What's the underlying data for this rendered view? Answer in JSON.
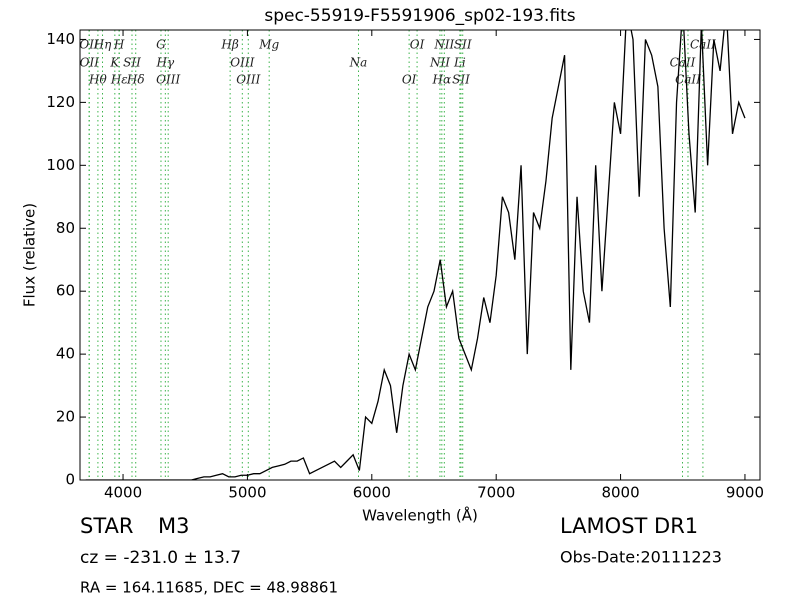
{
  "chart_data": {
    "type": "line",
    "title": "spec-55919-F5591906_sp02-193.fits",
    "x_label": "Wavelength (Å)",
    "y_label": "Flux (relative)",
    "xlim": [
      3654,
      9121
    ],
    "ylim": [
      0,
      143
    ],
    "xticks": [
      4000,
      5000,
      6000,
      7000,
      8000,
      9000
    ],
    "yticks": [
      0,
      20,
      40,
      60,
      80,
      100,
      120,
      140
    ],
    "color": "#000000",
    "line_color": "#3cb44b",
    "x": [
      3700,
      3750,
      3800,
      3850,
      3900,
      3950,
      4000,
      4050,
      4100,
      4150,
      4200,
      4250,
      4300,
      4350,
      4400,
      4450,
      4500,
      4550,
      4600,
      4650,
      4700,
      4750,
      4800,
      4850,
      4900,
      4950,
      5000,
      5050,
      5100,
      5150,
      5200,
      5250,
      5300,
      5350,
      5400,
      5450,
      5500,
      5550,
      5600,
      5650,
      5700,
      5750,
      5800,
      5850,
      5900,
      5950,
      6000,
      6050,
      6100,
      6150,
      6200,
      6250,
      6300,
      6350,
      6400,
      6450,
      6500,
      6550,
      6600,
      6650,
      6700,
      6750,
      6800,
      6850,
      6900,
      6950,
      7000,
      7050,
      7100,
      7150,
      7200,
      7250,
      7300,
      7350,
      7400,
      7450,
      7500,
      7550,
      7600,
      7650,
      7700,
      7750,
      7800,
      7850,
      7900,
      7950,
      8000,
      8050,
      8100,
      8150,
      8200,
      8250,
      8300,
      8350,
      8400,
      8450,
      8500,
      8550,
      8600,
      8650,
      8700,
      8750,
      8800,
      8850,
      8900,
      8950,
      9000
    ],
    "values": [
      0,
      0,
      0,
      0,
      0,
      0,
      0,
      0,
      0,
      0,
      0,
      0,
      0,
      0,
      0,
      0,
      0,
      0,
      0.5,
      1,
      1,
      1.5,
      2,
      1,
      1,
      1.5,
      1.5,
      2,
      2,
      3,
      4,
      4.5,
      5,
      6,
      6,
      7,
      2,
      3,
      4,
      5,
      6,
      4,
      6,
      8,
      3,
      20,
      18,
      25,
      35,
      30,
      15,
      30,
      40,
      35,
      45,
      55,
      60,
      70,
      55,
      60,
      45,
      40,
      35,
      45,
      58,
      50,
      65,
      90,
      85,
      70,
      100,
      40,
      85,
      80,
      95,
      115,
      125,
      135,
      35,
      90,
      60,
      50,
      100,
      60,
      90,
      120,
      110,
      150,
      140,
      90,
      140,
      135,
      125,
      80,
      55,
      120,
      150,
      110,
      85,
      145,
      100,
      140,
      130,
      150,
      110,
      120,
      115
    ],
    "lines": [
      {
        "wavelength": 3727,
        "label": "OII"
      },
      {
        "wavelength": 3729,
        "label": "OII"
      },
      {
        "wavelength": 3798,
        "label": "Hθ"
      },
      {
        "wavelength": 3835,
        "label": "Hη"
      },
      {
        "wavelength": 3934,
        "label": "K"
      },
      {
        "wavelength": 3970,
        "label": "Hε"
      },
      {
        "wavelength": 3968,
        "label": "H"
      },
      {
        "wavelength": 4072,
        "label": "SII"
      },
      {
        "wavelength": 4102,
        "label": "Hδ"
      },
      {
        "wavelength": 4305,
        "label": "G"
      },
      {
        "wavelength": 4340,
        "label": "Hγ"
      },
      {
        "wavelength": 4363,
        "label": "OIII"
      },
      {
        "wavelength": 4861,
        "label": "Hβ"
      },
      {
        "wavelength": 4959,
        "label": "OIII"
      },
      {
        "wavelength": 5007,
        "label": "OIII"
      },
      {
        "wavelength": 5175,
        "label": "Mg"
      },
      {
        "wavelength": 5893,
        "label": "Na"
      },
      {
        "wavelength": 6300,
        "label": "OI"
      },
      {
        "wavelength": 6364,
        "label": "OI"
      },
      {
        "wavelength": 6548,
        "label": "NII"
      },
      {
        "wavelength": 6563,
        "label": "Hα"
      },
      {
        "wavelength": 6583,
        "label": "NII"
      },
      {
        "wavelength": 6708,
        "label": "Li"
      },
      {
        "wavelength": 6717,
        "label": "SII"
      },
      {
        "wavelength": 6731,
        "label": "SII"
      },
      {
        "wavelength": 8498,
        "label": "CaII"
      },
      {
        "wavelength": 8542,
        "label": "CaII"
      },
      {
        "wavelength": 8662,
        "label": "CaII"
      }
    ],
    "object_class": "STAR",
    "subclass": "M3",
    "survey": "LAMOST DR1",
    "redshift": "cz = -231.0 ± 13.7",
    "obs_date": "Obs-Date:20111223",
    "coords": "RA = 164.11685, DEC = 48.98861"
  }
}
